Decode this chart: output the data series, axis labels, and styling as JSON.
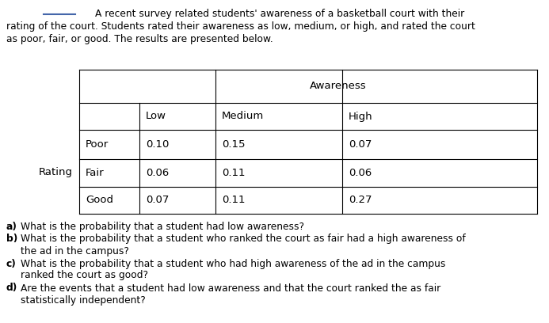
{
  "intro_line1": "A recent survey related students' awareness of a basketball court with their",
  "intro_line2": "rating of the court. Students rated their awareness as low, medium, or high, and rated the court",
  "intro_line3": "as poor, fair, or good. The results are presented below.",
  "awareness_label": "Awareness",
  "col_headers": [
    "Low",
    "Medium",
    "High"
  ],
  "row_label": "Rating",
  "row_headers": [
    "Poor",
    "Fair",
    "Good"
  ],
  "table_data": [
    [
      "0.10",
      "0.15",
      "0.07"
    ],
    [
      "0.06",
      "0.11",
      "0.06"
    ],
    [
      "0.07",
      "0.11",
      "0.27"
    ]
  ],
  "questions": [
    [
      "a)",
      "What is the probability that a student had low awareness?"
    ],
    [
      "b)",
      "What is the probability that a student who ranked the court as fair had a high awareness of\nthe ad in the campus?"
    ],
    [
      "c)",
      "What is the probability that a student who had high awareness of the ad in the campus\nranked the court as good?"
    ],
    [
      "d)",
      "Are the events that a student had low awareness and that the court ranked the as fair\nstatistically independent?"
    ]
  ],
  "bg_color": "#ffffff",
  "text_color": "#000000",
  "blue_line_color": "#4466aa",
  "table_line_color": "#000000"
}
